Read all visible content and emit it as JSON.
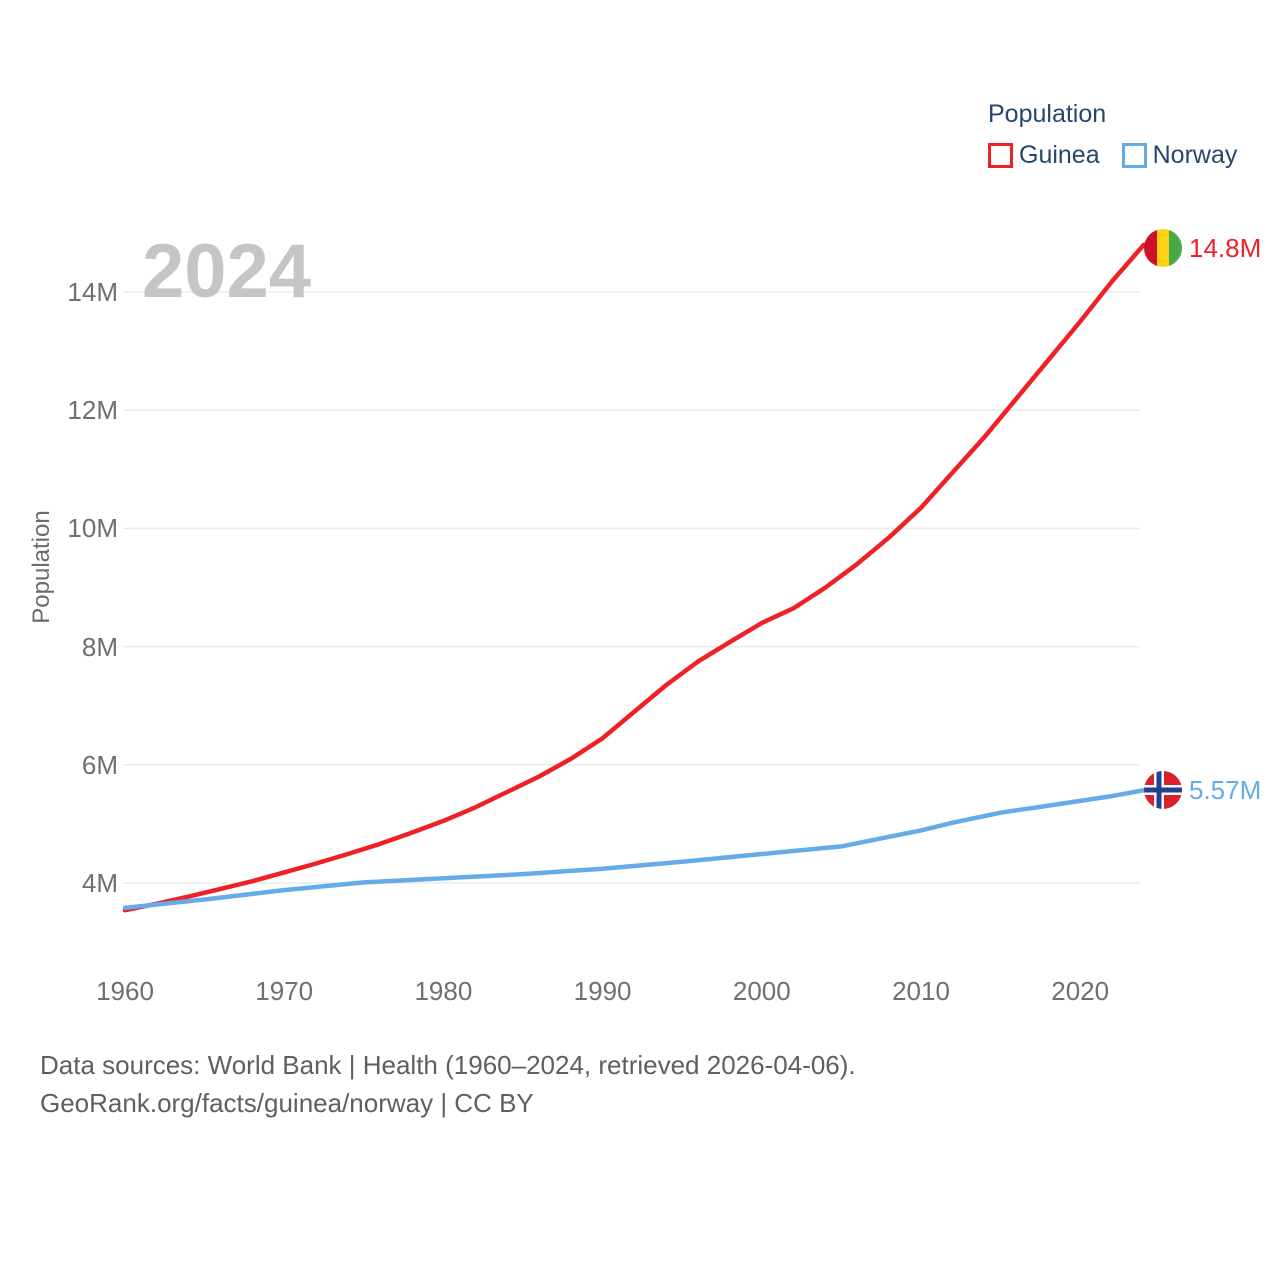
{
  "watermark": "2024",
  "legend": {
    "title": "Population",
    "items": [
      {
        "label": "Guinea",
        "color": "#ee2127"
      },
      {
        "label": "Norway",
        "color": "#66abe8"
      }
    ]
  },
  "footer": {
    "line1": "Data sources: World Bank | Health (1960–2024, retrieved 2026-04-06).",
    "line2": "GeoRank.org/facts/guinea/norway | CC BY"
  },
  "icons": {
    "guinea_flag": "guinea-flag-icon",
    "norway_flag": "norway-flag-icon"
  },
  "colors": {
    "grid": "#ebebeb",
    "tick_text": "#6f6f6f",
    "legend_text": "#27466b",
    "watermark": "#c5c5c5",
    "guinea_red": "#ee2127",
    "norway_blue": "#66abe8",
    "guinea_flag": {
      "red": "#CE1126",
      "yellow": "#FCD116",
      "green": "#4aa847"
    },
    "norway_flag": {
      "red": "#d8232e",
      "white": "#ffffff",
      "blue": "#23418f"
    }
  },
  "chart_data": {
    "type": "line",
    "title": "Population",
    "xlabel": "",
    "ylabel": "Population",
    "x_range": [
      1960,
      2024
    ],
    "ylim": [
      3.3,
      15.0
    ],
    "grid": "horizontal-only",
    "legend_position": "top-right",
    "y_tick_values": [
      4,
      6,
      8,
      10,
      12,
      14
    ],
    "y_tick_labels": [
      "4M",
      "6M",
      "8M",
      "10M",
      "12M",
      "14M"
    ],
    "x_tick_values": [
      1960,
      1970,
      1980,
      1990,
      2000,
      2010,
      2020
    ],
    "x_tick_labels": [
      "1960",
      "1970",
      "1980",
      "1990",
      "2000",
      "2010",
      "2020"
    ],
    "series": [
      {
        "name": "Guinea",
        "color": "#ee2127",
        "end_label": "14.8M",
        "end_value_millions": 14.8,
        "points": [
          [
            1960,
            3.54
          ],
          [
            1962,
            3.65
          ],
          [
            1964,
            3.77
          ],
          [
            1966,
            3.9
          ],
          [
            1968,
            4.03
          ],
          [
            1970,
            4.18
          ],
          [
            1972,
            4.33
          ],
          [
            1974,
            4.49
          ],
          [
            1976,
            4.66
          ],
          [
            1978,
            4.85
          ],
          [
            1980,
            5.05
          ],
          [
            1982,
            5.28
          ],
          [
            1984,
            5.54
          ],
          [
            1986,
            5.8
          ],
          [
            1988,
            6.1
          ],
          [
            1990,
            6.45
          ],
          [
            1992,
            6.9
          ],
          [
            1994,
            7.35
          ],
          [
            1996,
            7.75
          ],
          [
            1998,
            8.08
          ],
          [
            2000,
            8.4
          ],
          [
            2002,
            8.65
          ],
          [
            2004,
            9.0
          ],
          [
            2006,
            9.4
          ],
          [
            2008,
            9.85
          ],
          [
            2010,
            10.35
          ],
          [
            2012,
            10.95
          ],
          [
            2014,
            11.55
          ],
          [
            2016,
            12.2
          ],
          [
            2018,
            12.85
          ],
          [
            2020,
            13.5
          ],
          [
            2022,
            14.18
          ],
          [
            2024,
            14.8
          ]
        ]
      },
      {
        "name": "Norway",
        "color": "#66abe8",
        "end_label": "5.57M",
        "end_value_millions": 5.57,
        "points": [
          [
            1960,
            3.58
          ],
          [
            1965,
            3.72
          ],
          [
            1970,
            3.88
          ],
          [
            1975,
            4.01
          ],
          [
            1980,
            4.08
          ],
          [
            1985,
            4.15
          ],
          [
            1990,
            4.24
          ],
          [
            1995,
            4.36
          ],
          [
            2000,
            4.49
          ],
          [
            2005,
            4.62
          ],
          [
            2010,
            4.89
          ],
          [
            2012,
            5.02
          ],
          [
            2015,
            5.19
          ],
          [
            2018,
            5.31
          ],
          [
            2020,
            5.39
          ],
          [
            2022,
            5.47
          ],
          [
            2024,
            5.57
          ]
        ]
      }
    ]
  }
}
